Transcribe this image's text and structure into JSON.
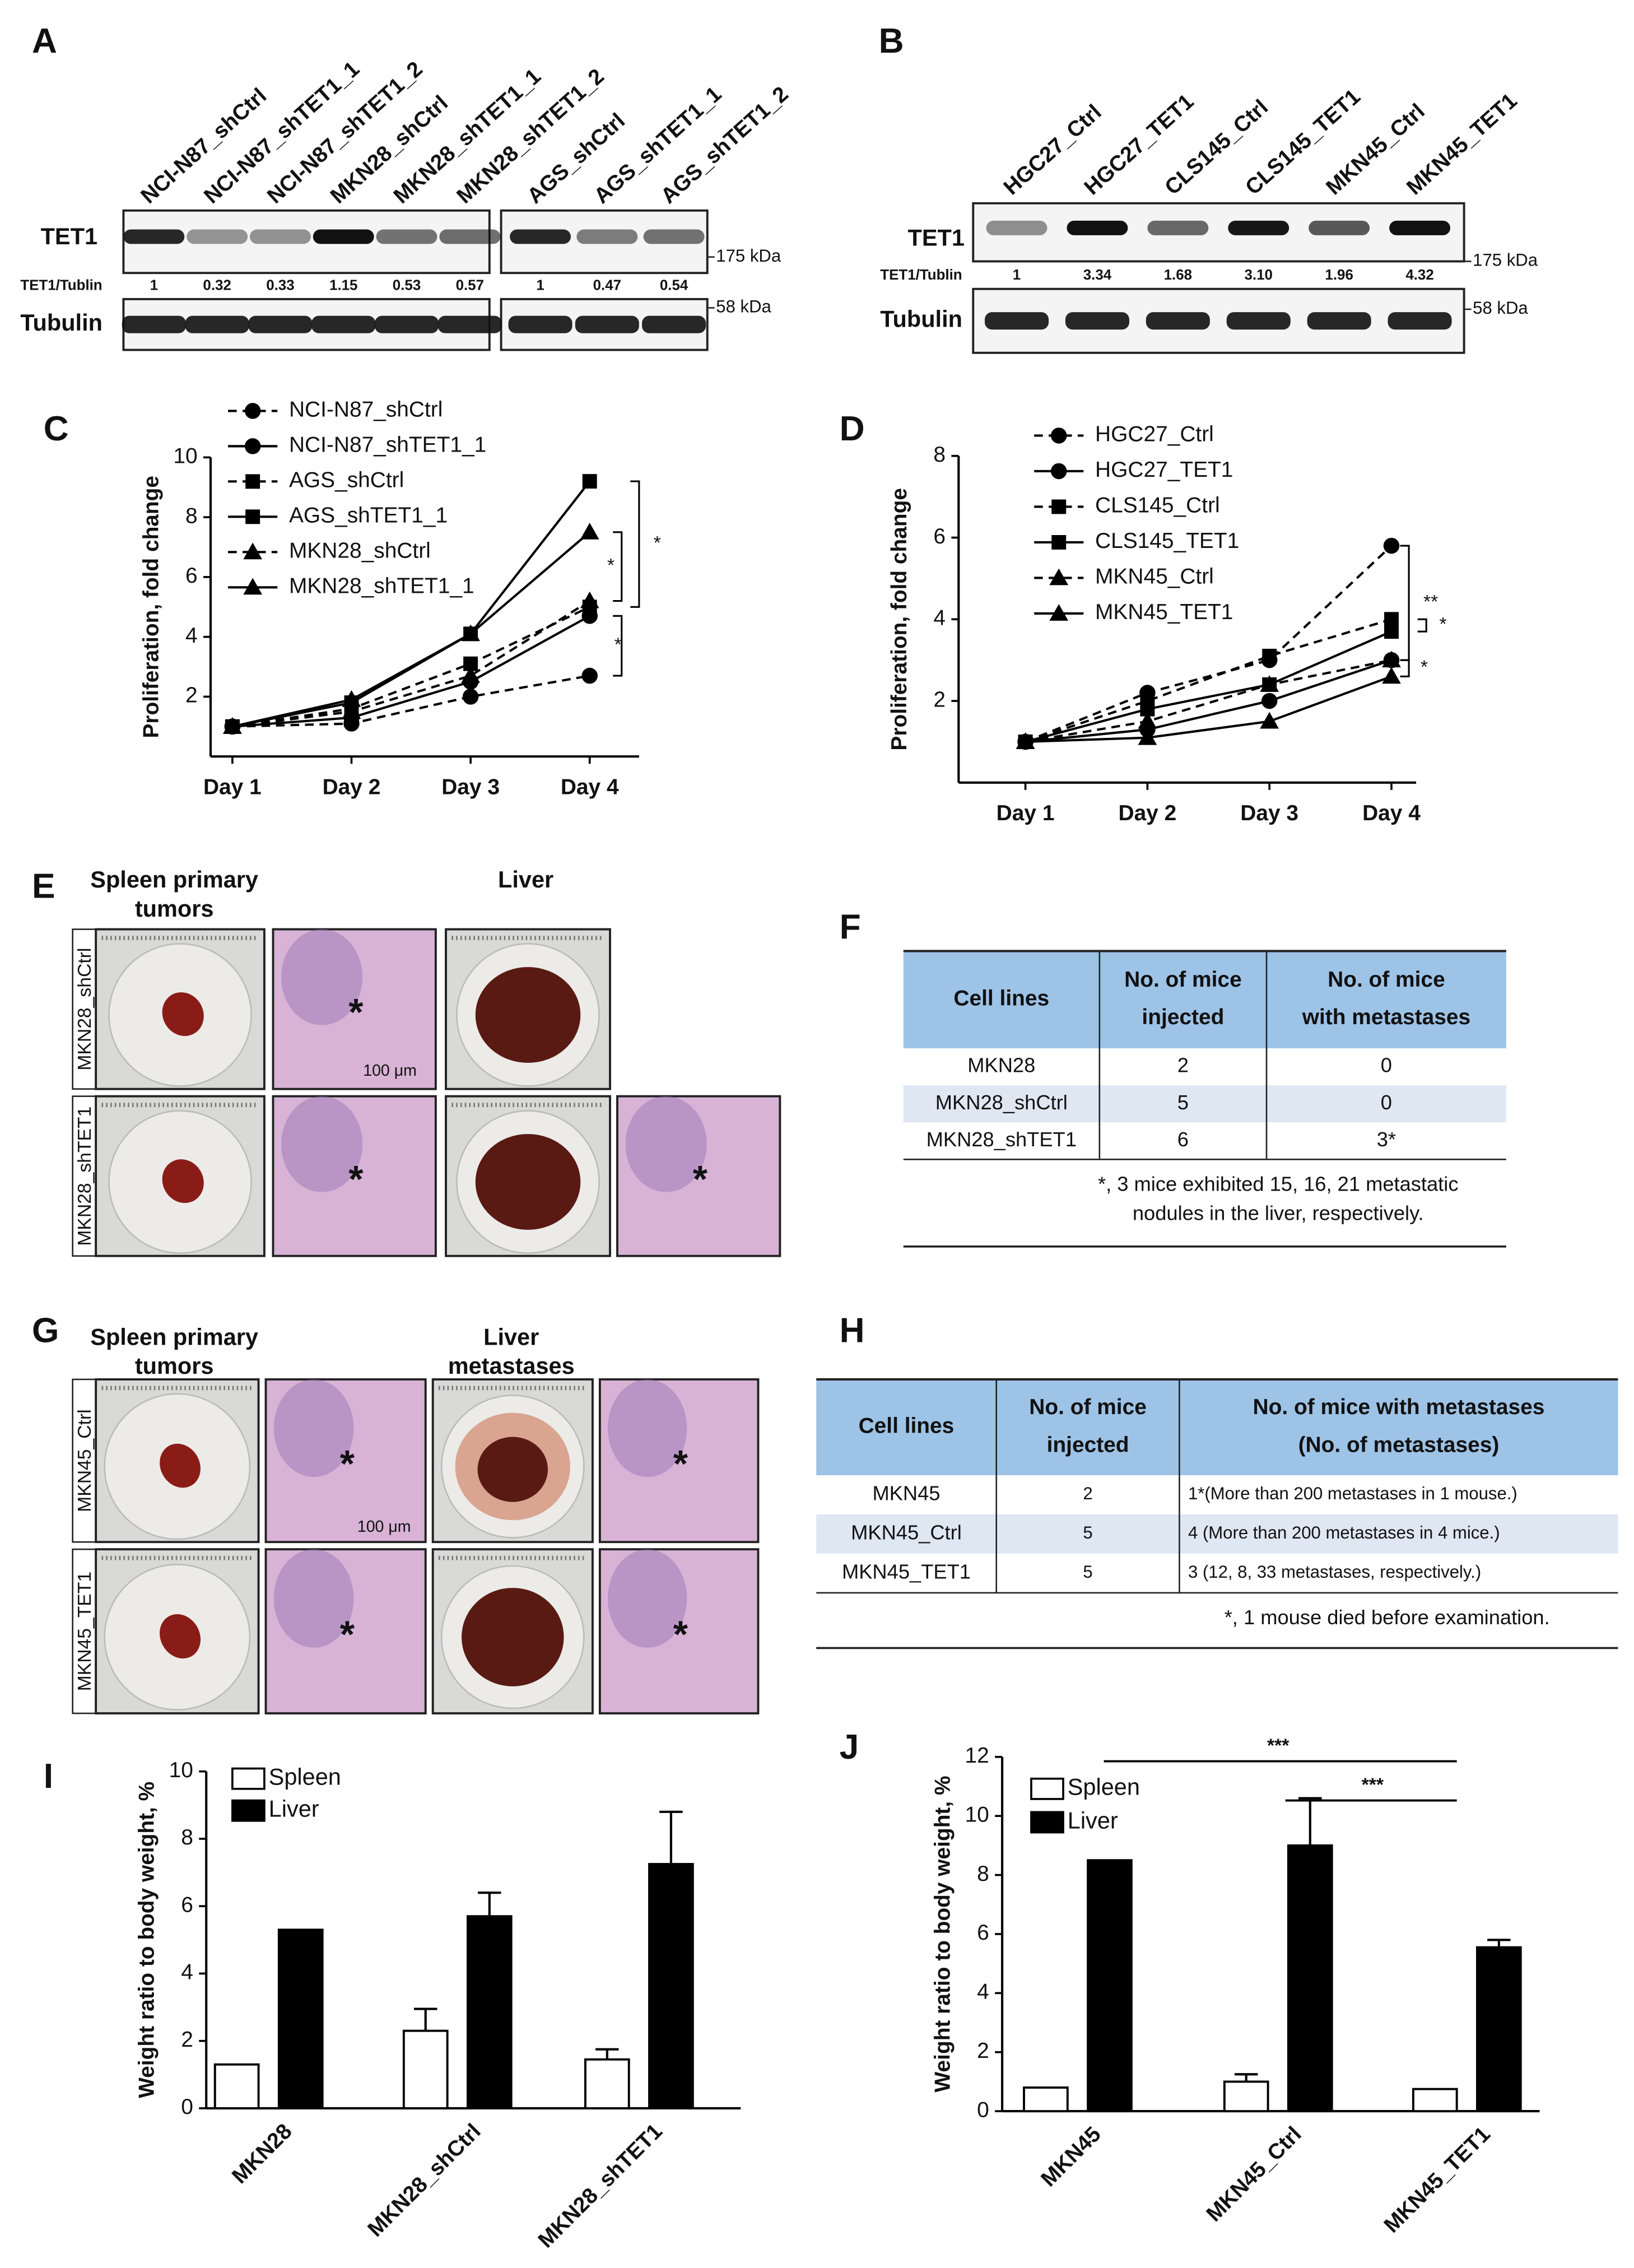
{
  "blot_a": {
    "panel": "A",
    "lanes": [
      "NCI-N87_shCtrl",
      "NCI-N87_shTET1_1",
      "NCI-N87_shTET1_2",
      "MKN28_shCtrl",
      "MKN28_shTET1_1",
      "MKN28_shTET1_2",
      "AGS_shCtrl",
      "AGS_shTET1_1",
      "AGS_shTET1_2"
    ],
    "rows": [
      "TET1",
      "TET1/Tublin",
      "Tubulin"
    ],
    "ratios": [
      "1",
      "0.32",
      "0.33",
      "1.15",
      "0.53",
      "0.57",
      "1",
      "0.47",
      "0.54"
    ],
    "markers": [
      "175 kDa",
      "58 kDa"
    ]
  },
  "blot_b": {
    "panel": "B",
    "lanes": [
      "HGC27_Ctrl",
      "HGC27_TET1",
      "CLS145_Ctrl",
      "CLS145_TET1",
      "MKN45_Ctrl",
      "MKN45_TET1"
    ],
    "rows": [
      "TET1",
      "TET1/Tublin",
      "Tubulin"
    ],
    "ratios": [
      "1",
      "3.34",
      "1.68",
      "3.10",
      "1.96",
      "4.32"
    ],
    "markers": [
      "175 kDa",
      "58 kDa"
    ]
  },
  "chart_data": [
    {
      "panel": "C",
      "type": "line",
      "y_label": "Proliferation, fold change",
      "categories": [
        "Day 1",
        "Day 2",
        "Day 3",
        "Day 4"
      ],
      "ylim": [
        0,
        10
      ],
      "yticks": [
        2,
        4,
        6,
        8,
        10
      ],
      "series": [
        {
          "name": "NCI-N87_shCtrl",
          "color": "#000000",
          "dashed": true,
          "marker": "circle",
          "values": [
            1,
            1.1,
            2.0,
            2.7
          ]
        },
        {
          "name": "NCI-N87_shTET1_1",
          "color": "#000000",
          "dashed": false,
          "marker": "circle",
          "values": [
            1,
            1.3,
            2.5,
            4.7
          ]
        },
        {
          "name": "AGS_shCtrl",
          "color": "#000000",
          "dashed": true,
          "marker": "square",
          "values": [
            1,
            1.6,
            3.1,
            5.0
          ]
        },
        {
          "name": "AGS_shTET1_1",
          "color": "#000000",
          "dashed": false,
          "marker": "square",
          "values": [
            1,
            1.8,
            4.1,
            9.2
          ]
        },
        {
          "name": "MKN28_shCtrl",
          "color": "#000000",
          "dashed": true,
          "marker": "triangle",
          "values": [
            1,
            1.5,
            2.7,
            5.2
          ]
        },
        {
          "name": "MKN28_shTET1_1",
          "color": "#000000",
          "dashed": false,
          "marker": "triangle",
          "values": [
            1,
            1.9,
            4.1,
            7.5
          ]
        }
      ],
      "annotations": [
        "*",
        "*",
        "*"
      ]
    },
    {
      "panel": "D",
      "type": "line",
      "y_label": "Proliferation, fold change",
      "categories": [
        "Day 1",
        "Day 2",
        "Day 3",
        "Day 4"
      ],
      "ylim": [
        0,
        8
      ],
      "yticks": [
        2,
        4,
        6,
        8
      ],
      "series": [
        {
          "name": "HGC27_Ctrl",
          "color": "#000000",
          "dashed": true,
          "marker": "circle",
          "values": [
            1,
            2.2,
            3.0,
            5.8
          ]
        },
        {
          "name": "HGC27_TET1",
          "color": "#000000",
          "dashed": false,
          "marker": "circle",
          "values": [
            1,
            1.3,
            2.0,
            3.0
          ]
        },
        {
          "name": "CLS145_Ctrl",
          "color": "#000000",
          "dashed": true,
          "marker": "square",
          "values": [
            1,
            2.0,
            3.1,
            4.0
          ]
        },
        {
          "name": "CLS145_TET1",
          "color": "#000000",
          "dashed": false,
          "marker": "square",
          "values": [
            1,
            1.8,
            2.4,
            3.7
          ]
        },
        {
          "name": "MKN45_Ctrl",
          "color": "#000000",
          "dashed": true,
          "marker": "triangle",
          "values": [
            1,
            1.5,
            2.4,
            3.0
          ]
        },
        {
          "name": "MKN45_TET1",
          "color": "#000000",
          "dashed": false,
          "marker": "triangle",
          "values": [
            1,
            1.1,
            1.5,
            2.6
          ]
        }
      ],
      "annotations": [
        "**",
        "*",
        "*"
      ]
    },
    {
      "panel": "I",
      "type": "bar",
      "y_label": "Weight ratio to body weight, %",
      "categories": [
        "MKN28",
        "MKN28_shCtrl",
        "MKN28_shTET1"
      ],
      "ylim": [
        0,
        10
      ],
      "yticks": [
        0,
        2,
        4,
        6,
        8,
        10
      ],
      "series": [
        {
          "name": "Spleen",
          "color": "#ffffff",
          "values": [
            1.3,
            2.3,
            1.45
          ],
          "errors": [
            null,
            0.65,
            0.3
          ]
        },
        {
          "name": "Liver",
          "color": "#000000",
          "values": [
            5.3,
            5.7,
            7.25
          ],
          "errors": [
            null,
            0.7,
            1.55
          ]
        }
      ]
    },
    {
      "panel": "J",
      "type": "bar",
      "y_label": "Weight ratio to body weight, %",
      "categories": [
        "MKN45",
        "MKN45_Ctrl",
        "MKN45_TET1"
      ],
      "ylim": [
        0,
        12
      ],
      "yticks": [
        0,
        2,
        4,
        6,
        8,
        10,
        12
      ],
      "series": [
        {
          "name": "Spleen",
          "color": "#ffffff",
          "values": [
            0.8,
            1.0,
            0.75
          ],
          "errors": [
            null,
            0.25,
            null
          ]
        },
        {
          "name": "Liver",
          "color": "#000000",
          "values": [
            8.5,
            9.0,
            5.55
          ],
          "errors": [
            null,
            1.6,
            0.25
          ]
        }
      ],
      "annotations": [
        "***",
        "***"
      ]
    }
  ],
  "image_e": {
    "panel": "E",
    "columns": [
      [
        "Spleen primary",
        "tumors"
      ],
      [
        "Liver"
      ]
    ],
    "rows": [
      "MKN28_shCtrl",
      "MKN28_shTET1"
    ],
    "scale_bar": "100 μm",
    "marker": "*"
  },
  "table_f": {
    "panel": "F",
    "header": [
      [
        "Cell lines"
      ],
      [
        "No. of mice",
        "injected"
      ],
      [
        "No. of mice",
        "with metastases"
      ]
    ],
    "rows": [
      [
        "MKN28",
        "2",
        "0"
      ],
      [
        "MKN28_shCtrl",
        "5",
        "0"
      ],
      [
        "MKN28_shTET1",
        "6",
        "3*"
      ]
    ],
    "footnote": [
      "*, 3 mice exhibited 15, 16, 21 metastatic",
      "nodules in the liver, respectively."
    ]
  },
  "image_g": {
    "panel": "G",
    "columns": [
      [
        "Spleen primary",
        "tumors"
      ],
      [
        "Liver",
        "metastases"
      ]
    ],
    "rows": [
      "MKN45_Ctrl",
      "MKN45_TET1"
    ],
    "scale_bar": "100 μm",
    "marker": "*"
  },
  "table_h": {
    "panel": "H",
    "header": [
      [
        "Cell lines"
      ],
      [
        "No. of mice",
        "injected"
      ],
      [
        "No. of  mice with metastases",
        "(No. of metastases)"
      ]
    ],
    "rows": [
      [
        "MKN45",
        "2",
        "1*(More than 200 metastases in 1 mouse.)"
      ],
      [
        "MKN45_Ctrl",
        "5",
        "4 (More than 200 metastases in 4 mice.)"
      ],
      [
        "MKN45_TET1",
        "5",
        "3 (12, 8, 33 metastases, respectively.)"
      ]
    ],
    "footnote": [
      "*, 1 mouse died before examination."
    ]
  }
}
